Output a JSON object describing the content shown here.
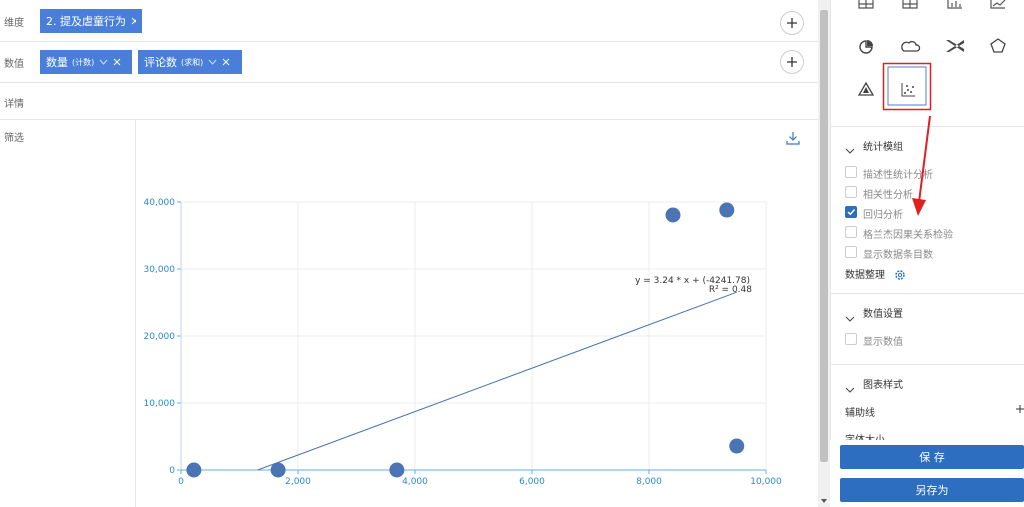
{
  "dimension": {
    "label": "维度",
    "tags": [
      {
        "text": "2. 提及虐童行为"
      }
    ]
  },
  "measure": {
    "label": "数值",
    "tags": [
      {
        "name": "数量",
        "agg": "(计数)"
      },
      {
        "name": "评论数",
        "agg": "(求和)"
      }
    ]
  },
  "detail": {
    "label": "详情"
  },
  "filter": {
    "label": "筛选"
  },
  "chart_data": {
    "type": "scatter",
    "x": [
      220,
      1660,
      3690,
      8410,
      9330,
      9500
    ],
    "values": [
      0,
      0,
      0,
      38060,
      38800,
      3580
    ],
    "color": "#4a74b4",
    "xlim": [
      0,
      10000
    ],
    "ylim": [
      0,
      40000
    ],
    "xticks": [
      0,
      {
        "value": 2000,
        "label": "2,000"
      },
      {
        "value": 4000,
        "label": "4,000"
      },
      {
        "value": 6000,
        "label": "6,000"
      },
      {
        "value": 8000,
        "label": "8,000"
      },
      {
        "value": 10000,
        "label": "10,000"
      }
    ],
    "yticks": [
      0,
      {
        "value": 10000,
        "label": "10,000"
      },
      {
        "value": 20000,
        "label": "20,000"
      },
      {
        "value": 30000,
        "label": "30,000"
      },
      {
        "value": 40000,
        "label": "40,000"
      }
    ],
    "grid": true,
    "trendline": {
      "equation": "y = 3.24 * x + (-4241.78)",
      "r2": "R² = 0.48",
      "slope": 3.24,
      "intercept": -4241.78
    }
  },
  "panel": {
    "stats": {
      "title": "统计模组",
      "options": [
        {
          "label": "描述性统计分析",
          "checked": false
        },
        {
          "label": "相关性分析",
          "checked": false
        },
        {
          "label": "回归分析",
          "checked": true
        },
        {
          "label": "格兰杰因果关系检验",
          "checked": false
        },
        {
          "label": "显示数据条目数",
          "checked": false
        }
      ],
      "data_tidy": "数据整理"
    },
    "value_settings": {
      "title": "数值设置",
      "options": [
        {
          "label": "显示数值",
          "checked": false
        }
      ]
    },
    "chart_style": {
      "title": "图表样式",
      "helper_line": "辅助线",
      "font_size": "字体大小"
    },
    "buttons": {
      "save": "保 存",
      "save_as": "另存为"
    }
  }
}
